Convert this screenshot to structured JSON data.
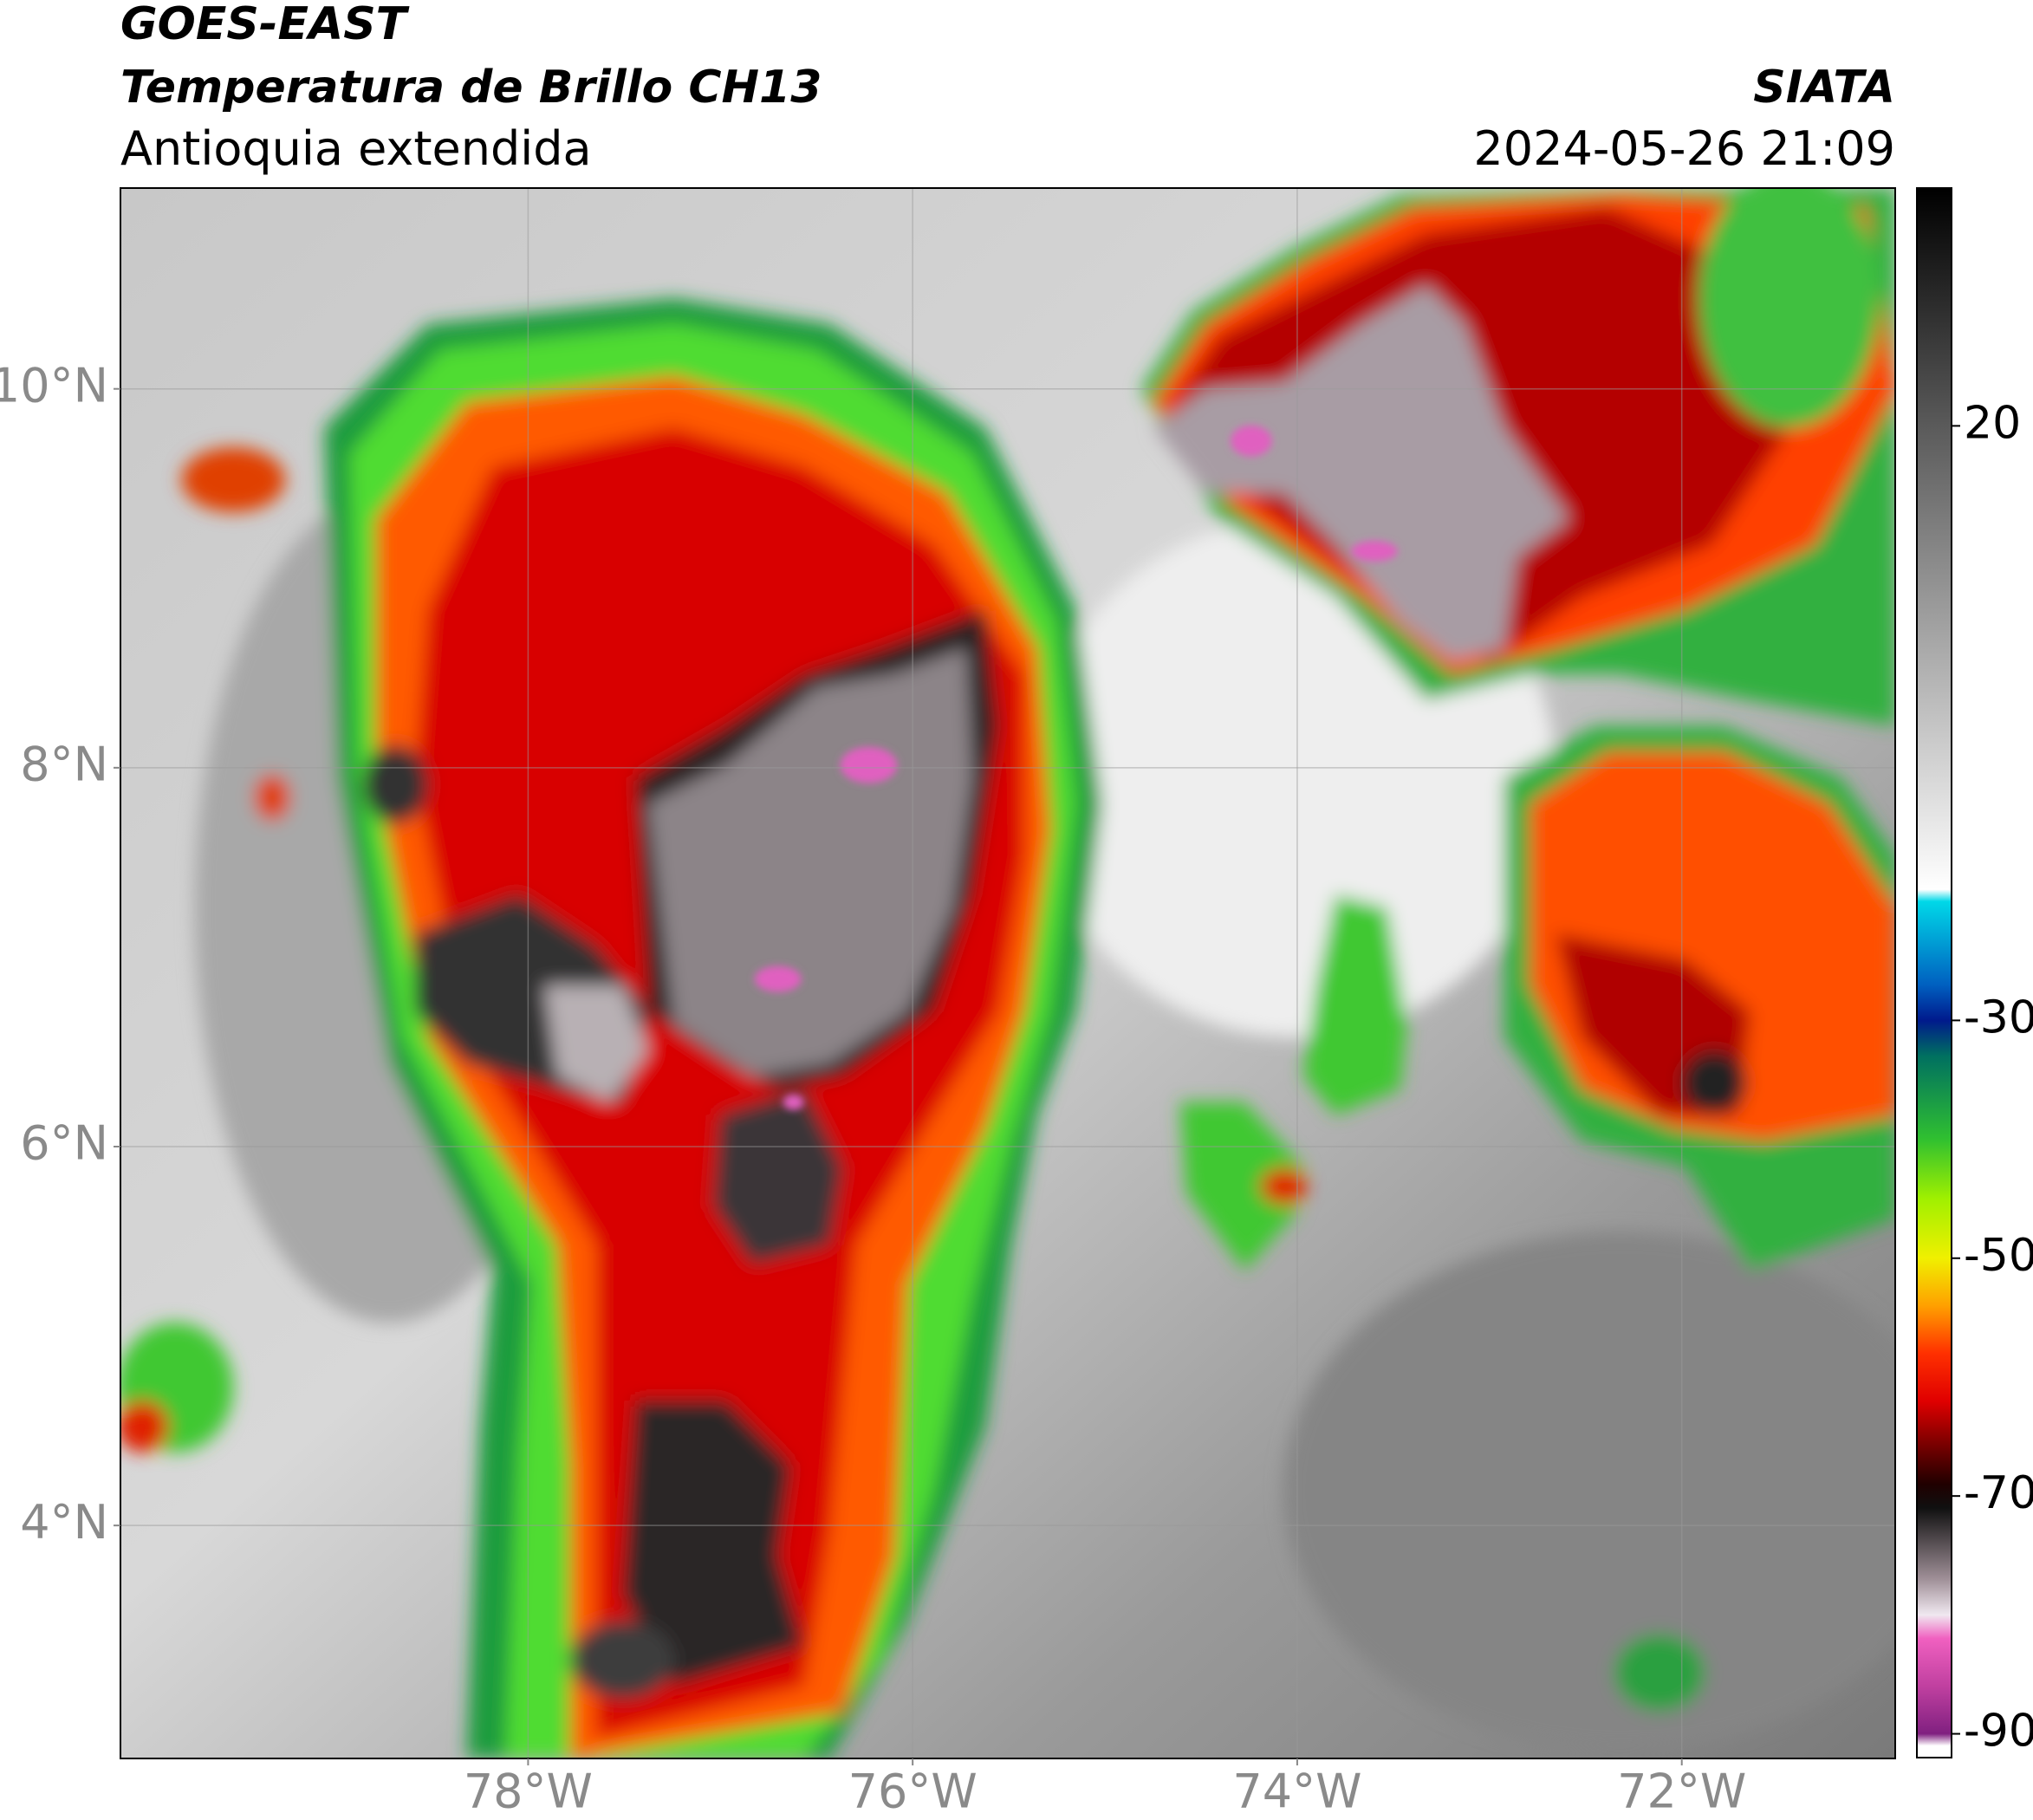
{
  "header": {
    "title": "GOES-EAST",
    "product": "Temperatura de Brillo CH13",
    "region": "Antioquia extendida",
    "source": "SIATA",
    "datetime": "2024-05-26 21:09"
  },
  "map": {
    "xlim": [
      -80.12,
      -70.89
    ],
    "ylim": [
      2.77,
      11.06
    ],
    "xticks": [
      {
        "value": -78,
        "label": "78°W"
      },
      {
        "value": -76,
        "label": "76°W"
      },
      {
        "value": -74,
        "label": "74°W"
      },
      {
        "value": -72,
        "label": "72°W"
      }
    ],
    "yticks": [
      {
        "value": 4,
        "label": "4°N"
      },
      {
        "value": 6,
        "label": "6°N"
      },
      {
        "value": 8,
        "label": "8°N"
      },
      {
        "value": 10,
        "label": "10°N"
      }
    ],
    "grid": true
  },
  "colorbar": {
    "lim": [
      -92,
      40
    ],
    "ticks": [
      20,
      -30,
      -50,
      -70,
      -90
    ],
    "stops": [
      {
        "value": 40,
        "color": "#000000"
      },
      {
        "value": 20,
        "color": "#5a5a5a"
      },
      {
        "value": -19,
        "color": "#ffffff"
      },
      {
        "value": -20,
        "color": "#00d8e8"
      },
      {
        "value": -27,
        "color": "#0060c0"
      },
      {
        "value": -30,
        "color": "#001a8c"
      },
      {
        "value": -33,
        "color": "#007060"
      },
      {
        "value": -40,
        "color": "#30c030"
      },
      {
        "value": -45,
        "color": "#a0f000"
      },
      {
        "value": -50,
        "color": "#f0f000"
      },
      {
        "value": -54,
        "color": "#ffa000"
      },
      {
        "value": -58,
        "color": "#ff3000"
      },
      {
        "value": -62,
        "color": "#e00000"
      },
      {
        "value": -66,
        "color": "#700000"
      },
      {
        "value": -69,
        "color": "#200000"
      },
      {
        "value": -71,
        "color": "#101010"
      },
      {
        "value": -77,
        "color": "#a09098"
      },
      {
        "value": -80,
        "color": "#f0e8f0"
      },
      {
        "value": -82,
        "color": "#f060c0"
      },
      {
        "value": -86,
        "color": "#c040a0"
      },
      {
        "value": -90,
        "color": "#802080"
      },
      {
        "value": -91,
        "color": "#ffffff"
      },
      {
        "value": -92,
        "color": "#ffffff"
      }
    ]
  }
}
